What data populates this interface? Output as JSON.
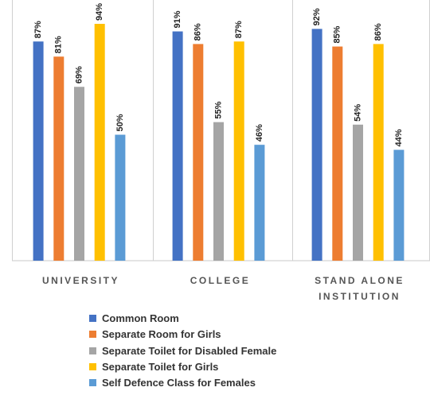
{
  "chart_data": {
    "type": "bar",
    "categories": [
      "UNIVERSITY",
      "COLLEGE",
      "STAND ALONE INSTITUTION"
    ],
    "series": [
      {
        "name": "Common Room",
        "color": "#4472c4",
        "values": [
          87,
          91,
          92
        ],
        "value_labels": [
          "87%",
          "91%",
          "92%"
        ]
      },
      {
        "name": "Separate Room for Girls",
        "color": "#ed7d31",
        "values": [
          81,
          86,
          85
        ],
        "value_labels": [
          "81%",
          "86%",
          "85%"
        ]
      },
      {
        "name": "Separate Toilet for Disabled Female",
        "color": "#a5a5a5",
        "values": [
          69,
          55,
          54
        ],
        "value_labels": [
          "69%",
          "55%",
          "54%"
        ]
      },
      {
        "name": "Separate Toilet for Girls",
        "color": "#ffc000",
        "values": [
          94,
          87,
          86
        ],
        "value_labels": [
          "94%",
          "87%",
          "86%"
        ]
      },
      {
        "name": "Self Defence Class for Females",
        "color": "#5b9bd5",
        "values": [
          50,
          46,
          44
        ],
        "value_labels": [
          "50%",
          "46%",
          "44%"
        ]
      }
    ],
    "ylim": [
      0,
      100
    ]
  }
}
